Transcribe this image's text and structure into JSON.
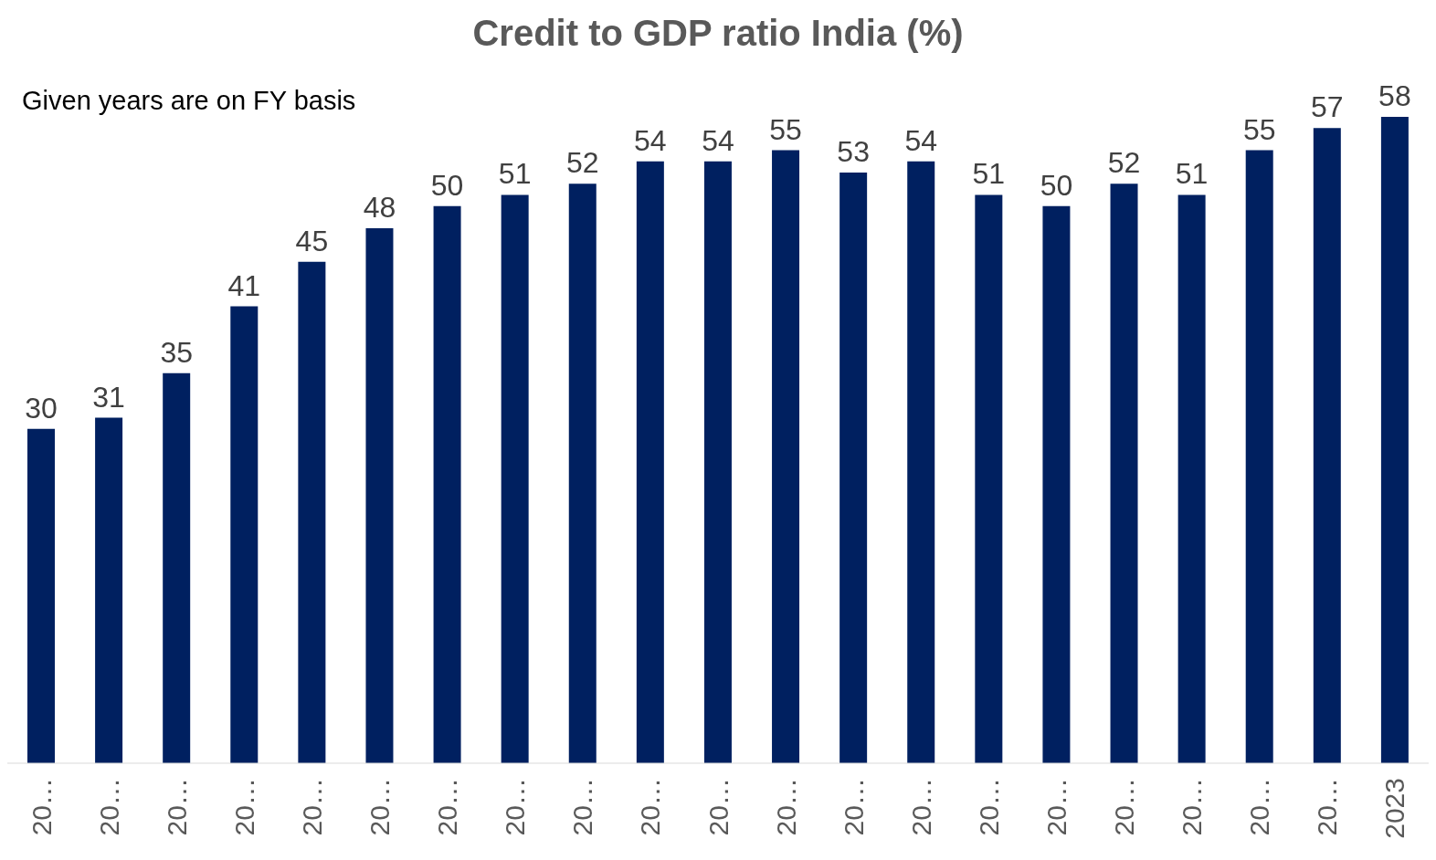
{
  "chart_data": {
    "type": "bar",
    "title": "Credit to GDP ratio India (%)",
    "annotations": [
      "Given years are on FY basis"
    ],
    "categories": [
      "20…",
      "20…",
      "20…",
      "20…",
      "20…",
      "20…",
      "20…",
      "20…",
      "20…",
      "20…",
      "20…",
      "20…",
      "20…",
      "20…",
      "20…",
      "20…",
      "20…",
      "20…",
      "20…",
      "20…",
      "2023"
    ],
    "values": [
      30,
      31,
      35,
      41,
      45,
      48,
      50,
      51,
      52,
      54,
      54,
      55,
      53,
      54,
      51,
      50,
      52,
      51,
      55,
      57,
      58
    ],
    "color": "#002060",
    "data_labels": true,
    "grid": false,
    "legend": false
  }
}
